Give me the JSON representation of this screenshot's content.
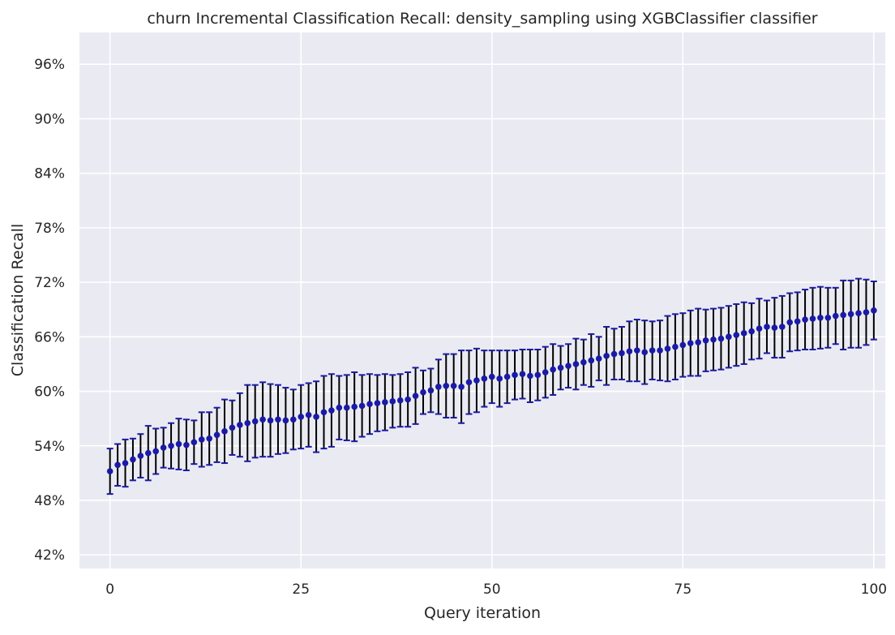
{
  "chart_data": {
    "type": "scatter",
    "title": "churn Incremental Classification Recall: density_sampling using XGBClassifier classifier",
    "xlabel": "Query iteration",
    "ylabel": "Classification Recall",
    "xlim": [
      -4,
      101.5
    ],
    "ylim": [
      40.5,
      99.5
    ],
    "xticks": [
      0,
      25,
      50,
      75,
      100
    ],
    "xtick_labels": [
      "0",
      "25",
      "50",
      "75",
      "100"
    ],
    "yticks": [
      42,
      48,
      54,
      60,
      66,
      72,
      78,
      84,
      90,
      96
    ],
    "ytick_labels": [
      "42%",
      "48%",
      "54%",
      "60%",
      "66%",
      "72%",
      "78%",
      "84%",
      "90%",
      "96%"
    ],
    "grid": true,
    "colors": {
      "background": "#eaeaf2",
      "grid": "#ffffff",
      "marker": "#1a1aa8",
      "errorbar": "#000000",
      "cap": "#1a1aa8"
    },
    "series": [
      {
        "x": [
          0,
          1,
          2,
          3,
          4,
          5,
          6,
          7,
          8,
          9,
          10,
          11,
          12,
          13,
          14,
          15,
          16,
          17,
          18,
          19,
          20,
          21,
          22,
          23,
          24,
          25,
          26,
          27,
          28,
          29,
          30,
          31,
          32,
          33,
          34,
          35,
          36,
          37,
          38,
          39,
          40,
          41,
          42,
          43,
          44,
          45,
          46,
          47,
          48,
          49,
          50,
          51,
          52,
          53,
          54,
          55,
          56,
          57,
          58,
          59,
          60,
          61,
          62,
          63,
          64,
          65,
          66,
          67,
          68,
          69,
          70,
          71,
          72,
          73,
          74,
          75,
          76,
          77,
          78,
          79,
          80,
          81,
          82,
          83,
          84,
          85,
          86,
          87,
          88,
          89,
          90,
          91,
          92,
          93,
          94,
          95,
          96,
          97,
          98,
          99,
          100
        ],
        "y": [
          51.2,
          51.9,
          52.1,
          52.5,
          52.9,
          53.2,
          53.4,
          53.8,
          54.0,
          54.2,
          54.1,
          54.4,
          54.7,
          54.8,
          55.2,
          55.6,
          56.0,
          56.3,
          56.5,
          56.7,
          56.9,
          56.8,
          56.9,
          56.8,
          56.9,
          57.2,
          57.4,
          57.2,
          57.7,
          57.9,
          58.2,
          58.2,
          58.3,
          58.4,
          58.6,
          58.7,
          58.8,
          58.9,
          59.0,
          59.1,
          59.5,
          59.9,
          60.1,
          60.5,
          60.6,
          60.6,
          60.5,
          61.0,
          61.2,
          61.4,
          61.6,
          61.4,
          61.6,
          61.8,
          61.9,
          61.7,
          61.8,
          62.1,
          62.4,
          62.6,
          62.8,
          63.0,
          63.2,
          63.4,
          63.6,
          63.9,
          64.1,
          64.2,
          64.4,
          64.5,
          64.3,
          64.5,
          64.5,
          64.7,
          64.9,
          65.1,
          65.3,
          65.4,
          65.6,
          65.7,
          65.8,
          66.0,
          66.2,
          66.4,
          66.6,
          66.9,
          67.1,
          67.0,
          67.1,
          67.6,
          67.7,
          67.9,
          68.0,
          68.1,
          68.1,
          68.3,
          68.4,
          68.5,
          68.6,
          68.7,
          68.9
        ],
        "err": [
          2.5,
          2.3,
          2.6,
          2.3,
          2.4,
          3.0,
          2.5,
          2.2,
          2.5,
          2.8,
          2.8,
          2.4,
          3.0,
          2.9,
          3.0,
          3.5,
          3.0,
          3.5,
          4.2,
          4.0,
          4.1,
          4.0,
          3.8,
          3.6,
          3.3,
          3.5,
          3.5,
          3.9,
          4.0,
          4.0,
          3.5,
          3.6,
          3.8,
          3.4,
          3.3,
          3.1,
          3.1,
          2.9,
          2.9,
          3.0,
          3.1,
          2.4,
          2.4,
          3.0,
          3.5,
          3.5,
          4.0,
          3.5,
          3.5,
          3.1,
          2.9,
          3.1,
          2.9,
          2.7,
          2.7,
          2.9,
          2.8,
          2.8,
          2.8,
          2.4,
          2.4,
          2.8,
          2.5,
          2.9,
          2.4,
          3.2,
          2.8,
          2.9,
          3.3,
          3.4,
          3.5,
          3.2,
          3.3,
          3.6,
          3.6,
          3.5,
          3.6,
          3.7,
          3.4,
          3.4,
          3.4,
          3.4,
          3.4,
          3.4,
          3.1,
          3.3,
          2.9,
          3.3,
          3.4,
          3.2,
          3.2,
          3.3,
          3.4,
          3.4,
          3.3,
          3.1,
          3.8,
          3.7,
          3.8,
          3.6,
          3.2
        ]
      }
    ]
  }
}
